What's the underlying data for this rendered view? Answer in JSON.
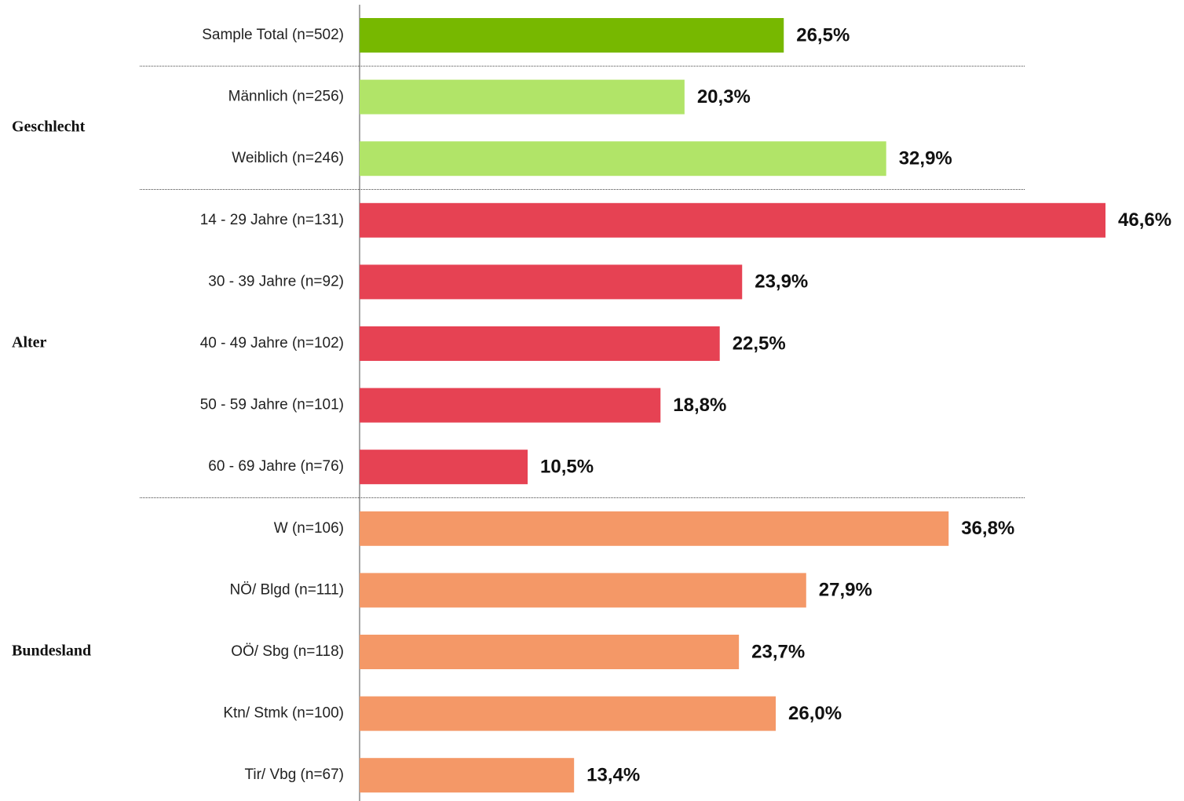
{
  "chart_data": {
    "type": "bar",
    "orientation": "horizontal",
    "groups": [
      {
        "categories": [
          "Sample Total (n=502)"
        ],
        "values": [
          26.5
        ],
        "value_labels": [
          "26,5%"
        ],
        "color": "#77b800"
      },
      {
        "name": "Geschlecht",
        "categories": [
          "Männlich (n=256)",
          "Weiblich (n=246)"
        ],
        "values": [
          20.3,
          32.9
        ],
        "value_labels": [
          "20,3%",
          "32,9%"
        ],
        "color": "#b1e468"
      },
      {
        "name": "Alter",
        "categories": [
          "14 - 29 Jahre (n=131)",
          "30 - 39 Jahre (n=92)",
          "40 - 49 Jahre (n=102)",
          "50 - 59 Jahre (n=101)",
          "60 - 69 Jahre (n=76)"
        ],
        "values": [
          46.6,
          23.9,
          22.5,
          18.8,
          10.5
        ],
        "value_labels": [
          "46,6%",
          "23,9%",
          "22,5%",
          "18,8%",
          "10,5%"
        ],
        "color": "#e64253"
      },
      {
        "name": "Bundesland",
        "categories": [
          "W (n=106)",
          "NÖ/ Blgd (n=111)",
          "OÖ/ Sbg (n=118)",
          "Ktn/ Stmk (n=100)",
          "Tir/ Vbg (n=67)"
        ],
        "values": [
          36.8,
          27.9,
          23.7,
          26.0,
          13.4
        ],
        "value_labels": [
          "36,8%",
          "27,9%",
          "23,7%",
          "26,0%",
          "13,4%"
        ],
        "color": "#f49867"
      }
    ]
  }
}
